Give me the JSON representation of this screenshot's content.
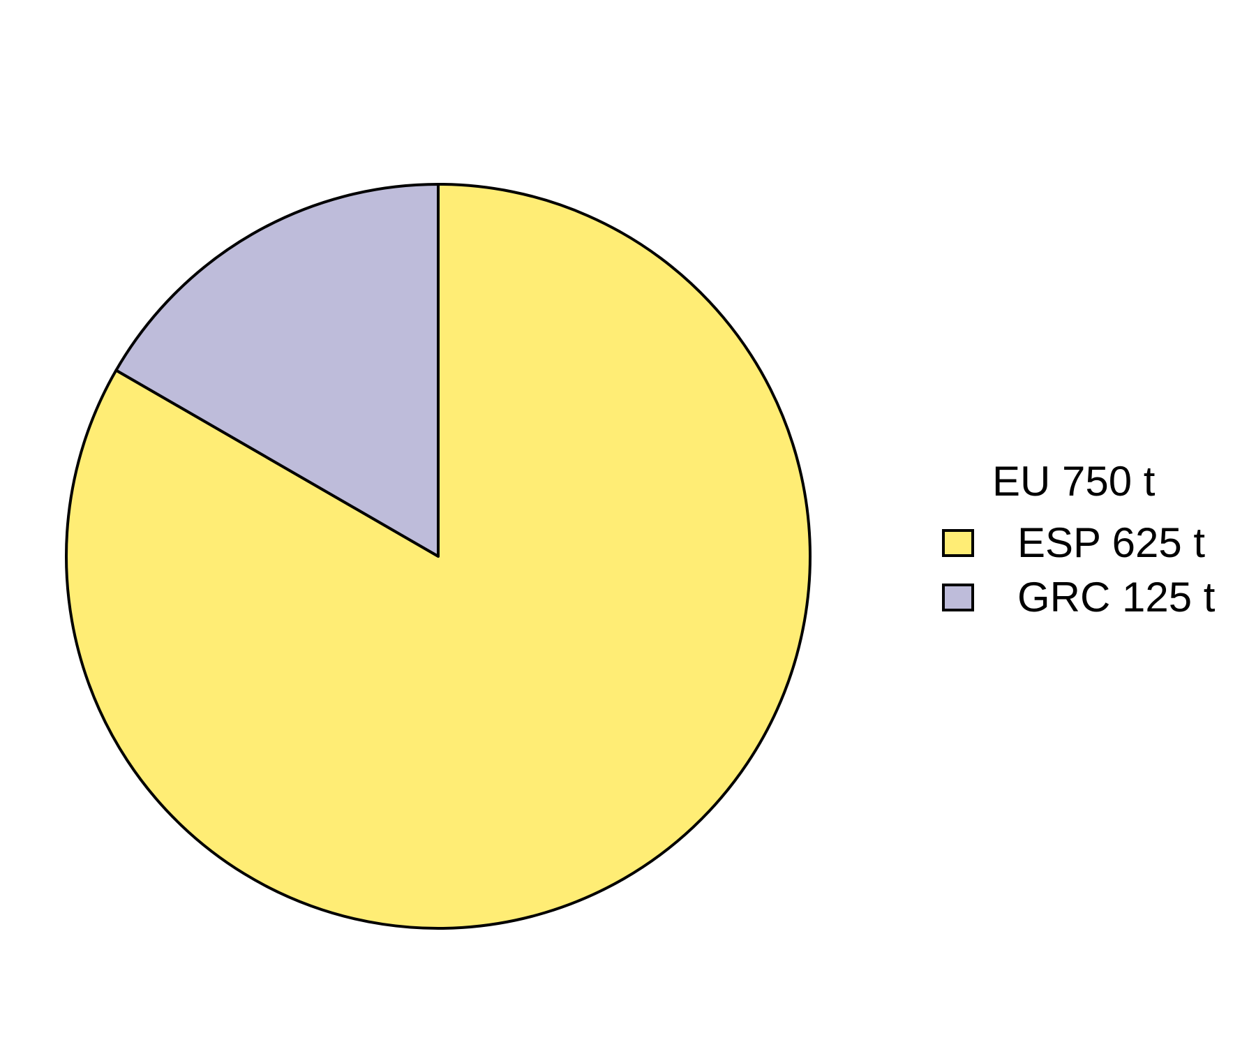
{
  "chart_data": {
    "type": "pie",
    "title": "",
    "legend_title": "EU 750 t",
    "legend_placement": "right",
    "start": "top",
    "direction": "clockwise",
    "series": [
      {
        "name": "ESP",
        "label": "ESP 625 t",
        "value": 625,
        "color": "#FFED75"
      },
      {
        "name": "GRC",
        "label": "GRC 125 t",
        "value": 125,
        "color": "#BEBCDA"
      }
    ]
  }
}
